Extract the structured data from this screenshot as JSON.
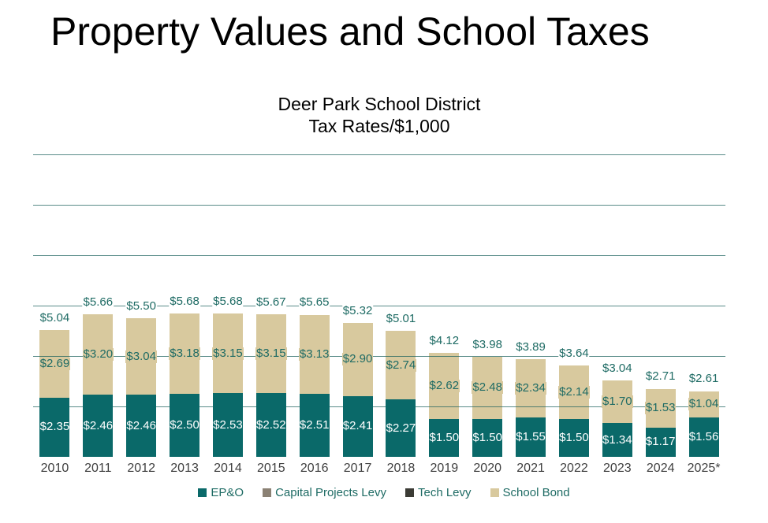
{
  "title": "Property Values and School Taxes",
  "subtitle": {
    "line1": "Deer Park School District",
    "line2": "Tax Rates/$1,000"
  },
  "chart_data": {
    "type": "bar",
    "stacked": true,
    "title": "Property Values and School Taxes",
    "subtitle": [
      "Deer Park School District",
      "Tax Rates/$1,000"
    ],
    "categories": [
      "2010",
      "2011",
      "2012",
      "2013",
      "2014",
      "2015",
      "2016",
      "2017",
      "2018",
      "2019",
      "2020",
      "2021",
      "2022",
      "2023",
      "2024",
      "2025*"
    ],
    "series": [
      {
        "name": "EP&O",
        "color": "#0a6969",
        "values": [
          2.35,
          2.46,
          2.46,
          2.5,
          2.53,
          2.52,
          2.51,
          2.41,
          2.27,
          1.5,
          1.5,
          1.55,
          1.5,
          1.34,
          1.17,
          1.56
        ],
        "labels": [
          "$2.35",
          "$2.46",
          "$2.46",
          "$2.50",
          "$2.53",
          "$2.52",
          "$2.51",
          "$2.41",
          "$2.27",
          "$1.50",
          "$1.50",
          "$1.55",
          "$1.50",
          "$1.34",
          "$1.17",
          "$1.56"
        ],
        "label_color": "#ffffff"
      },
      {
        "name": "School Bond",
        "color": "#d8c99e",
        "values": [
          2.69,
          3.2,
          3.04,
          3.18,
          3.15,
          3.15,
          3.13,
          2.9,
          2.74,
          2.62,
          2.48,
          2.34,
          2.14,
          1.7,
          1.53,
          1.04
        ],
        "labels": [
          "$2.69",
          "$3.20",
          "$3.04",
          "$3.18",
          "$3.15",
          "$3.15",
          "$3.13",
          "$2.90",
          "$2.74",
          "$2.62",
          "$2.48",
          "$2.34",
          "$2.14",
          "$1.70",
          "$1.53",
          "$1.04"
        ],
        "label_color": "#1e6b64"
      }
    ],
    "totals": [
      5.04,
      5.66,
      5.5,
      5.68,
      5.68,
      5.67,
      5.65,
      5.32,
      5.01,
      4.12,
      3.98,
      3.89,
      3.64,
      3.04,
      2.71,
      2.61
    ],
    "total_labels": [
      "$5.04",
      "$5.66",
      "$5.50",
      "$5.68",
      "$5.68",
      "$5.67",
      "$5.65",
      "$5.32",
      "$5.01",
      "$4.12",
      "$3.98",
      "$3.89",
      "$3.64",
      "$3.04",
      "$2.71",
      "$2.61"
    ],
    "ylim": [
      0,
      12
    ],
    "gridline_step": 2,
    "grid": true,
    "y_axis_tick_labels_visible": false,
    "legend_position": "bottom",
    "legend_items": [
      {
        "label": "EP&O",
        "color": "#0a6969"
      },
      {
        "label": "Capital Projects Levy",
        "color": "#8b8174"
      },
      {
        "label": "Tech Levy",
        "color": "#3b3b35"
      },
      {
        "label": "School Bond",
        "color": "#d8c99e"
      }
    ]
  },
  "colors": {
    "epo_bar": "#0a6969",
    "school_bond_bar": "#d8c99e",
    "value_label_text": "#1e6b64",
    "epo_inside_label_text": "#ffffff",
    "year_label_text": "#3f3f3f",
    "legend_text": "#1e6b64",
    "gridline": "#6f9a94",
    "title_text": "#000000"
  }
}
